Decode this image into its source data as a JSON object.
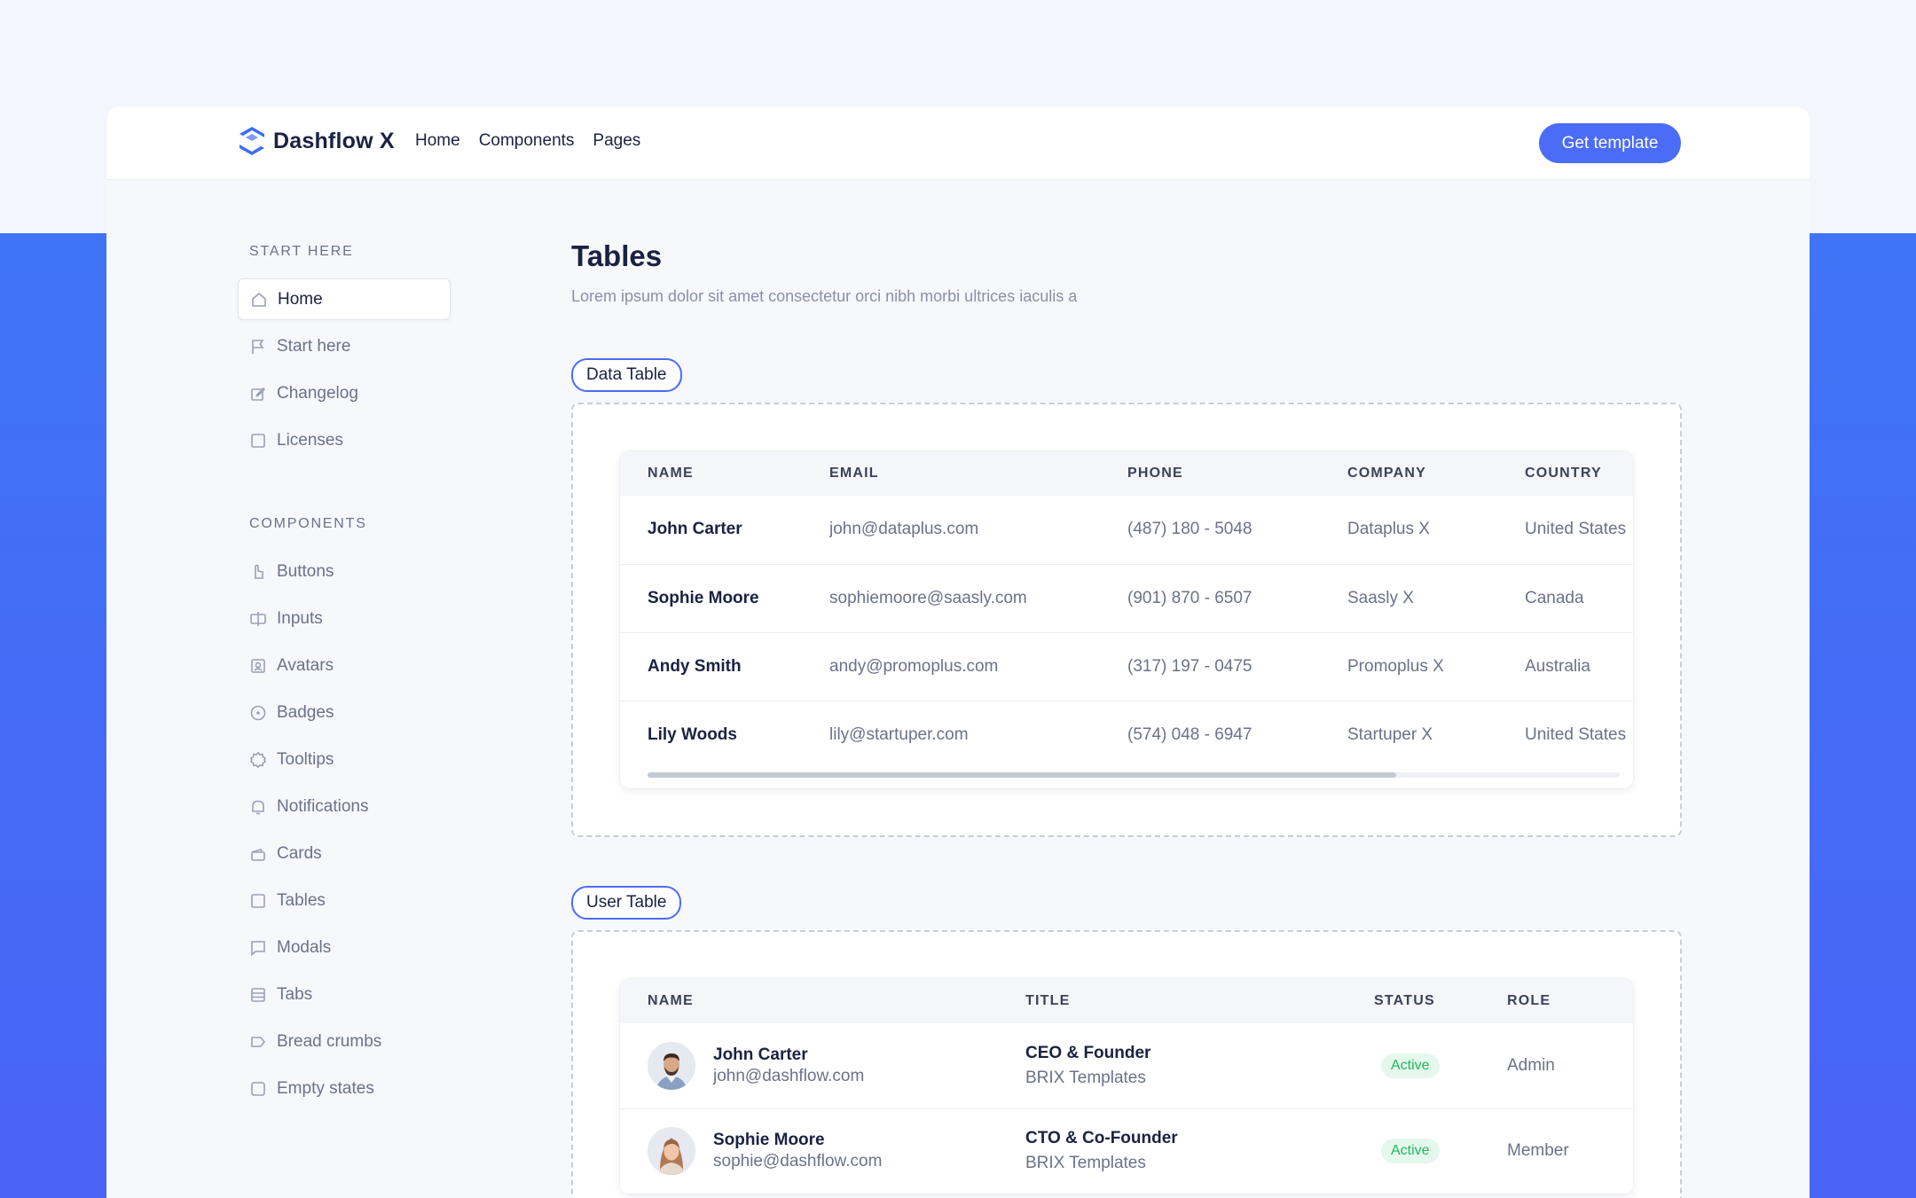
{
  "brand": {
    "name": "Dashflow X",
    "logo_icon": "dashflow-logo-icon",
    "accent": "#4a6cf7"
  },
  "nav": {
    "links": [
      "Home",
      "Components",
      "Pages"
    ],
    "cta_label": "Get template"
  },
  "sidebar": {
    "start_section": "START HERE",
    "start_items": [
      {
        "label": "Home",
        "icon": "home-icon",
        "active": true
      },
      {
        "label": "Start here",
        "icon": "flag-icon"
      },
      {
        "label": "Changelog",
        "icon": "edit-icon"
      },
      {
        "label": "Licenses",
        "icon": "square-icon"
      }
    ],
    "components_section": "COMPONENTS",
    "components_items": [
      {
        "label": "Buttons",
        "icon": "pointer-icon"
      },
      {
        "label": "Inputs",
        "icon": "cursor-text-icon"
      },
      {
        "label": "Avatars",
        "icon": "user-square-icon"
      },
      {
        "label": "Badges",
        "icon": "circle-icon"
      },
      {
        "label": "Tooltips",
        "icon": "gear-icon"
      },
      {
        "label": "Notifications",
        "icon": "bell-icon"
      },
      {
        "label": "Cards",
        "icon": "cards-icon"
      },
      {
        "label": "Tables",
        "icon": "table-icon"
      },
      {
        "label": "Modals",
        "icon": "message-icon"
      },
      {
        "label": "Tabs",
        "icon": "tabs-icon"
      },
      {
        "label": "Bread crumbs",
        "icon": "tag-icon"
      },
      {
        "label": "Empty states",
        "icon": "empty-square-icon"
      }
    ]
  },
  "main": {
    "title": "Tables",
    "subtitle": "Lorem ipsum dolor sit amet consectetur orci nibh morbi ultrices iaculis a",
    "data_table": {
      "pill": "Data Table",
      "headers": [
        "NAME",
        "EMAIL",
        "PHONE",
        "COMPANY",
        "COUNTRY"
      ],
      "rows": [
        {
          "name": "John Carter",
          "email": "john@dataplus.com",
          "phone": "(487) 180 - 5048",
          "company": "Dataplus X",
          "country": "United States"
        },
        {
          "name": "Sophie Moore",
          "email": "sophiemoore@saasly.com",
          "phone": "(901) 870 - 6507",
          "company": "Saasly X",
          "country": "Canada"
        },
        {
          "name": "Andy Smith",
          "email": "andy@promoplus.com",
          "phone": "(317) 197 - 0475",
          "company": "Promoplus X",
          "country": "Australia"
        },
        {
          "name": "Lily Woods",
          "email": "lily@startuper.com",
          "phone": "(574) 048 - 6947",
          "company": "Startuper X",
          "country": "United States"
        }
      ],
      "scroll_fraction": 0.77
    },
    "user_table": {
      "pill": "User Table",
      "headers": [
        "NAME",
        "TITLE",
        "STATUS",
        "ROLE"
      ],
      "rows": [
        {
          "name": "John Carter",
          "email": "john@dashflow.com",
          "title": "CEO & Founder",
          "company": "BRIX Templates",
          "status": "Active",
          "role": "Admin",
          "avatar": "avatar-man"
        },
        {
          "name": "Sophie Moore",
          "email": "sophie@dashflow.com",
          "title": "CTO & Co-Founder",
          "company": "BRIX Templates",
          "status": "Active",
          "role": "Member",
          "avatar": "avatar-woman"
        }
      ]
    }
  }
}
